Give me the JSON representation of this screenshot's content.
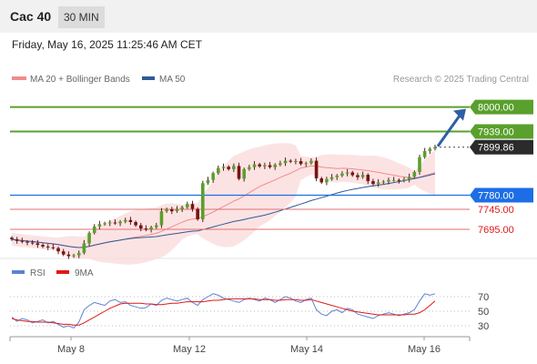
{
  "header": {
    "title": "Cac 40",
    "timeframe": "30 MIN"
  },
  "datetime": "Friday, May 16, 2025 11:25:46 AM CET",
  "credit": "Research © 2025 Trading Central",
  "colors": {
    "bullish": "#5aa02c",
    "bearish": "#e07272",
    "support": "#1d6ee6",
    "ma50": "#2e5a99",
    "ma20": "#f08c8c",
    "rsi": "#5b82d6",
    "rsi_ma": "#e01818",
    "arrow": "#2e5fa3"
  },
  "chart_data": [
    {
      "type": "candlestick",
      "legend": [
        {
          "label": "MA 20 + Bollinger Bands",
          "color": "#f08c8c"
        },
        {
          "label": "MA 50",
          "color": "#2e5a99"
        }
      ],
      "x_ticks": [
        "May 8",
        "May 12",
        "May 14",
        "May 16"
      ],
      "ylim": [
        7620,
        8040
      ],
      "levels": [
        {
          "value": 8000.0,
          "label": "8000.00",
          "kind": "resistance"
        },
        {
          "value": 7939.0,
          "label": "7939.00",
          "kind": "resistance"
        },
        {
          "value": 7899.86,
          "label": "7899.86",
          "kind": "last"
        },
        {
          "value": 7780.0,
          "label": "7780.00",
          "kind": "pivot"
        },
        {
          "value": 7745.0,
          "label": "7745.00",
          "kind": "support"
        },
        {
          "value": 7695.0,
          "label": "7695.00",
          "kind": "support"
        }
      ],
      "close": [
        7670,
        7666,
        7664,
        7662,
        7660,
        7656,
        7652,
        7650,
        7648,
        7640,
        7632,
        7628,
        7630,
        7636,
        7660,
        7686,
        7702,
        7708,
        7710,
        7712,
        7710,
        7714,
        7718,
        7713,
        7705,
        7697,
        7694,
        7700,
        7705,
        7740,
        7745,
        7740,
        7745,
        7750,
        7758,
        7746,
        7720,
        7810,
        7818,
        7835,
        7848,
        7851,
        7845,
        7853,
        7821,
        7845,
        7850,
        7857,
        7852,
        7855,
        7850,
        7856,
        7860,
        7866,
        7864,
        7865,
        7858,
        7860,
        7866,
        7822,
        7812,
        7820,
        7825,
        7829,
        7834,
        7837,
        7830,
        7825,
        7831,
        7815,
        7808,
        7812,
        7814,
        7818,
        7818,
        7816,
        7819,
        7826,
        7838,
        7875,
        7890,
        7896,
        7899.86
      ]
    },
    {
      "type": "line",
      "title": "RSI",
      "legend": [
        {
          "label": "RSI",
          "color": "#5b82d6"
        },
        {
          "label": "9MA",
          "color": "#e01818"
        }
      ],
      "ylim": [
        20,
        85
      ],
      "y_ticks": [
        70,
        50,
        30
      ],
      "rsi": [
        42,
        36,
        40,
        38,
        34,
        36,
        38,
        34,
        36,
        32,
        28,
        30,
        27,
        35,
        52,
        58,
        62,
        60,
        58,
        64,
        66,
        62,
        63,
        58,
        56,
        54,
        55,
        60,
        58,
        65,
        68,
        66,
        64,
        66,
        68,
        62,
        58,
        66,
        70,
        74,
        72,
        68,
        66,
        64,
        62,
        66,
        68,
        66,
        64,
        68,
        66,
        62,
        66,
        70,
        68,
        64,
        62,
        66,
        68,
        52,
        46,
        44,
        50,
        52,
        48,
        54,
        52,
        46,
        44,
        42,
        40,
        44,
        46,
        48,
        46,
        44,
        46,
        48,
        52,
        64,
        74,
        72,
        74
      ],
      "ma": [
        40,
        38,
        37,
        36,
        36,
        35,
        35,
        35,
        34,
        33,
        32,
        32,
        31,
        31,
        34,
        38,
        42,
        46,
        50,
        54,
        57,
        60,
        61,
        61,
        61,
        61,
        60,
        60,
        59,
        59,
        60,
        61,
        61,
        62,
        63,
        63,
        63,
        63,
        64,
        65,
        65,
        66,
        67,
        67,
        67,
        67,
        67,
        67,
        66,
        66,
        66,
        65,
        65,
        66,
        66,
        66,
        65,
        65,
        66,
        64,
        62,
        60,
        58,
        56,
        54,
        52,
        50,
        49,
        48,
        47,
        46,
        45,
        45,
        45,
        45,
        45,
        45,
        46,
        46,
        48,
        52,
        58,
        64
      ]
    }
  ]
}
